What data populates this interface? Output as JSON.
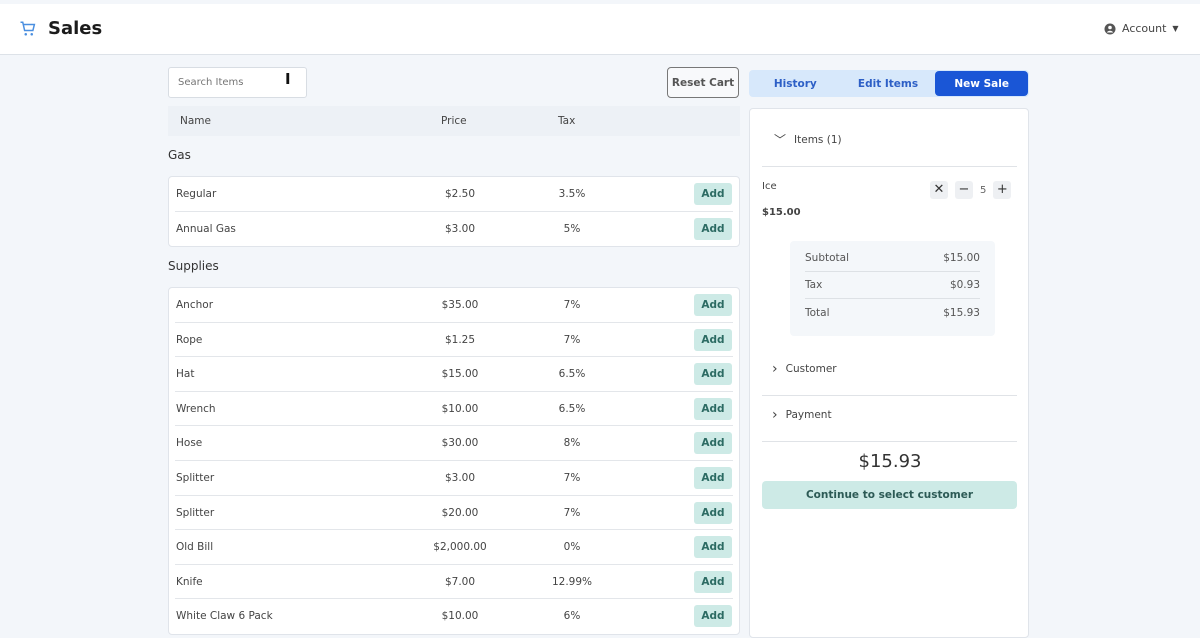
{
  "header": {
    "title": "Sales",
    "account": "Account"
  },
  "search": {
    "placeholder": "Search Items"
  },
  "reset_label": "Reset Cart",
  "columns": [
    "Name",
    "Price",
    "Tax"
  ],
  "add_label": "Add",
  "groups": [
    {
      "name": "Gas",
      "items": [
        {
          "name": "Regular",
          "price": "$2.50",
          "tax": "3.5%"
        },
        {
          "name": "Annual Gas",
          "price": "$3.00",
          "tax": "5%"
        }
      ]
    },
    {
      "name": "Supplies",
      "items": [
        {
          "name": "Anchor",
          "price": "$35.00",
          "tax": "7%"
        },
        {
          "name": "Rope",
          "price": "$1.25",
          "tax": "7%"
        },
        {
          "name": "Hat",
          "price": "$15.00",
          "tax": "6.5%"
        },
        {
          "name": "Wrench",
          "price": "$10.00",
          "tax": "6.5%"
        },
        {
          "name": "Hose",
          "price": "$30.00",
          "tax": "8%"
        },
        {
          "name": "Splitter",
          "price": "$3.00",
          "tax": "7%"
        },
        {
          "name": "Splitter",
          "price": "$20.00",
          "tax": "7%"
        },
        {
          "name": "Old Bill",
          "price": "$2,000.00",
          "tax": "0%"
        },
        {
          "name": "Knife",
          "price": "$7.00",
          "tax": "12.99%"
        },
        {
          "name": "White Claw 6 Pack",
          "price": "$10.00",
          "tax": "6%"
        }
      ]
    }
  ],
  "tabs": [
    {
      "label": "History"
    },
    {
      "label": "Edit Items"
    },
    {
      "label": "New Sale",
      "active": true
    }
  ],
  "cart": {
    "items_label": "Items (1)",
    "item": {
      "name": "Ice",
      "price": "$15.00",
      "qty": "5"
    },
    "summary": {
      "subtotal_label": "Subtotal",
      "subtotal": "$15.00",
      "tax_label": "Tax",
      "tax": "$0.93",
      "total_label": "Total",
      "total": "$15.93"
    },
    "customer_label": "Customer",
    "payment_label": "Payment",
    "grand_total": "$15.93",
    "continue_label": "Continue to select customer"
  },
  "colors": {
    "accent": "#1a56d6",
    "add_bg": "#cdeae6",
    "cart_icon": "#4a8fe0"
  }
}
